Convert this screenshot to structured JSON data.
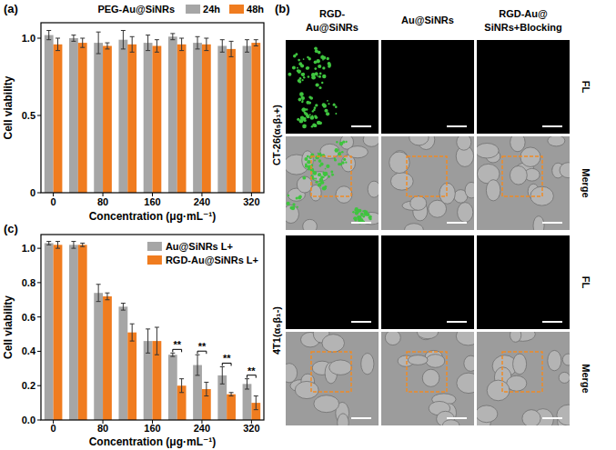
{
  "chart_data": [
    {
      "type": "bar",
      "title": "(a)",
      "xlabel": "Concentration (μg·mL⁻¹)",
      "ylabel": "Cell viability",
      "categories": [
        "0",
        null,
        "80",
        null,
        "160",
        null,
        "240",
        null,
        "320"
      ],
      "series": [
        {
          "name": "24h",
          "color": "#a6a6a6",
          "values": [
            1.02,
            1.0,
            0.97,
            0.99,
            0.97,
            1.01,
            0.97,
            0.95,
            0.95
          ],
          "errors": [
            0.03,
            0.02,
            0.07,
            0.06,
            0.05,
            0.02,
            0.04,
            0.04,
            0.04
          ]
        },
        {
          "name": "48h",
          "color": "#f07c1f",
          "values": [
            0.96,
            0.97,
            0.95,
            0.96,
            0.95,
            0.96,
            0.96,
            0.93,
            0.97
          ],
          "errors": [
            0.04,
            0.03,
            0.02,
            0.05,
            0.04,
            0.04,
            0.04,
            0.05,
            0.02
          ]
        }
      ],
      "ylim": [
        0,
        1.1
      ],
      "yticks": [
        0,
        0.5,
        {
          "value": 1,
          "label": "1.0"
        }
      ],
      "grid": false,
      "legend": "upper right",
      "annotations": [
        {
          "text": "PEG-Au@SiNRs"
        }
      ]
    },
    {
      "type": "image_grid",
      "title": "(b)",
      "columns": [
        [
          "RGD-",
          "Au@SiNRs"
        ],
        [
          "Au@SiNRs"
        ],
        [
          "RGD-Au@",
          "SiNRs+Blocking"
        ]
      ],
      "rows": [
        {
          "cell_line": "CT-26(α₅β₁+)",
          "channels": [
            "FL",
            "Merge"
          ]
        },
        {
          "cell_line": "4T1(α₅β₁-)",
          "channels": [
            "FL",
            "Merge"
          ]
        }
      ]
    },
    {
      "type": "bar",
      "title": "(c)",
      "xlabel": "Concentration (μg·mL⁻¹)",
      "ylabel": "Cell viability",
      "categories": [
        "0",
        null,
        "80",
        null,
        "160",
        null,
        "240",
        null,
        "320"
      ],
      "series": [
        {
          "name": "Au@SiNRs L+",
          "color": "#a6a6a6",
          "values": [
            1.03,
            1.02,
            0.74,
            0.66,
            0.46,
            0.38,
            0.32,
            0.26,
            0.21
          ],
          "errors": [
            0.01,
            0.02,
            0.05,
            0.02,
            0.07,
            0.01,
            0.06,
            0.05,
            0.03
          ]
        },
        {
          "name": "RGD-Au@SiNRs L+",
          "color": "#f07c1f",
          "values": [
            1.02,
            1.02,
            0.72,
            0.51,
            0.46,
            0.2,
            0.18,
            0.15,
            0.1
          ],
          "errors": [
            0.02,
            0.01,
            0.02,
            0.05,
            0.08,
            0.04,
            0.04,
            0.01,
            0.04
          ]
        }
      ],
      "ylim": [
        0,
        1.08
      ],
      "yticks": [
        {
          "value": 0,
          "label": "0.0"
        },
        0.2,
        0.4,
        0.6,
        0.8,
        {
          "value": 1,
          "label": "1.0"
        }
      ],
      "grid": false,
      "legend": "upper right",
      "annotations": [
        {
          "text": "**",
          "category_index": 5
        },
        {
          "text": "**",
          "category_index": 6
        },
        {
          "text": "**",
          "category_index": 7
        },
        {
          "text": "**",
          "category_index": 8
        }
      ]
    }
  ]
}
